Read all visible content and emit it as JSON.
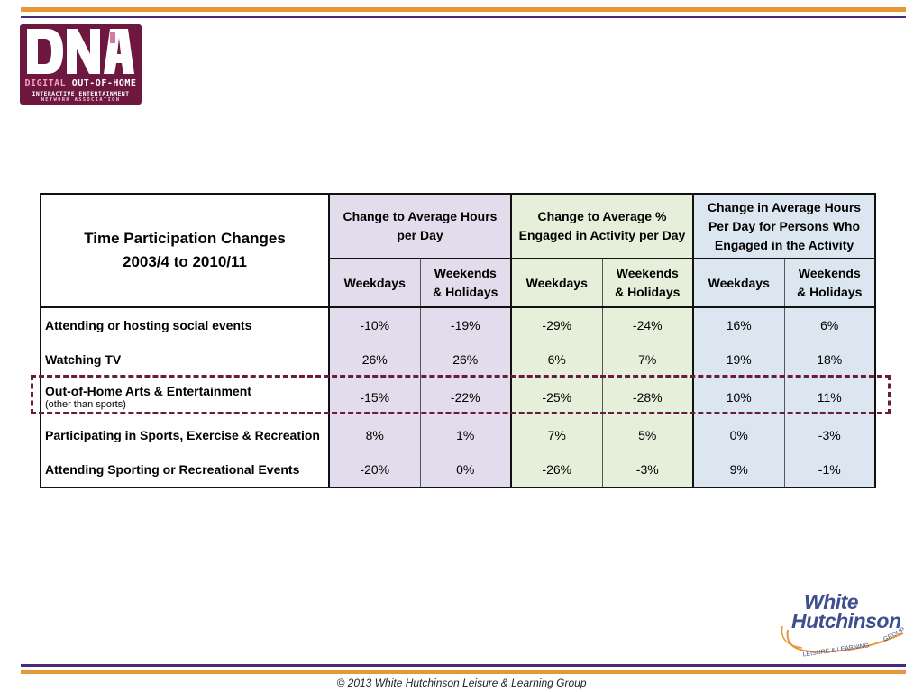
{
  "logo_left": {
    "mark_text": "DNA",
    "line1_accent": "DIGITAL",
    "line1_rest": "OUT-OF-HOME",
    "line2": "INTERACTIVE ENTERTAINMENT",
    "line3": "NETWORK ASSOCIATION",
    "color": "#6e1840"
  },
  "table": {
    "title_line1": "Time Participation Changes",
    "title_line2": "2003/4 to 2010/11",
    "groups": [
      {
        "label_line1": "Change to Average Hours",
        "label_line2": "per Day",
        "label_line3": "",
        "color": "#e3dcec"
      },
      {
        "label_line1": "Change to Average %",
        "label_line2": "Engaged in Activity per Day",
        "label_line3": "",
        "color": "#e6efd9"
      },
      {
        "label_line1": "Change in Average Hours",
        "label_line2": "Per Day for Persons Who",
        "label_line3": "Engaged in the Activity",
        "color": "#dce6f1"
      }
    ],
    "sub_weekdays": "Weekdays",
    "sub_weekends_line1": "Weekends",
    "sub_weekends_line2": "& Holidays",
    "rows": [
      {
        "label": "Attending or hosting social events",
        "sublabel": "",
        "values": [
          "-10%",
          "-19%",
          "-29%",
          "-24%",
          "16%",
          "6%"
        ]
      },
      {
        "label": "Watching TV",
        "sublabel": "",
        "values": [
          "26%",
          "26%",
          "6%",
          "7%",
          "19%",
          "18%"
        ]
      },
      {
        "label": "Out-of-Home Arts & Entertainment",
        "sublabel": "(other than sports)",
        "values": [
          "-15%",
          "-22%",
          "-25%",
          "-28%",
          "10%",
          "11%"
        ],
        "highlighted": true
      },
      {
        "label": "Participating in Sports, Exercise & Recreation",
        "sublabel": "",
        "values": [
          "8%",
          "1%",
          "7%",
          "5%",
          "0%",
          "-3%"
        ]
      },
      {
        "label": "Attending Sporting or Recreational Events",
        "sublabel": "",
        "values": [
          "-20%",
          "0%",
          "-26%",
          "-3%",
          "9%",
          "-1%"
        ]
      }
    ],
    "highlight_color": "#6a1c3e"
  },
  "logo_right": {
    "word1": "White",
    "word2": "Hutchinson",
    "tagline_left": "LEISURE & LEARNING",
    "tagline_right": "GROUP",
    "color": "#3d4f8c",
    "accent": "#e8963a"
  },
  "footer": {
    "text": "© 2013 White Hutchinson Leisure & Learning Group"
  },
  "colors": {
    "rule_orange": "#e8963a",
    "rule_purple": "#4a2a7a"
  }
}
